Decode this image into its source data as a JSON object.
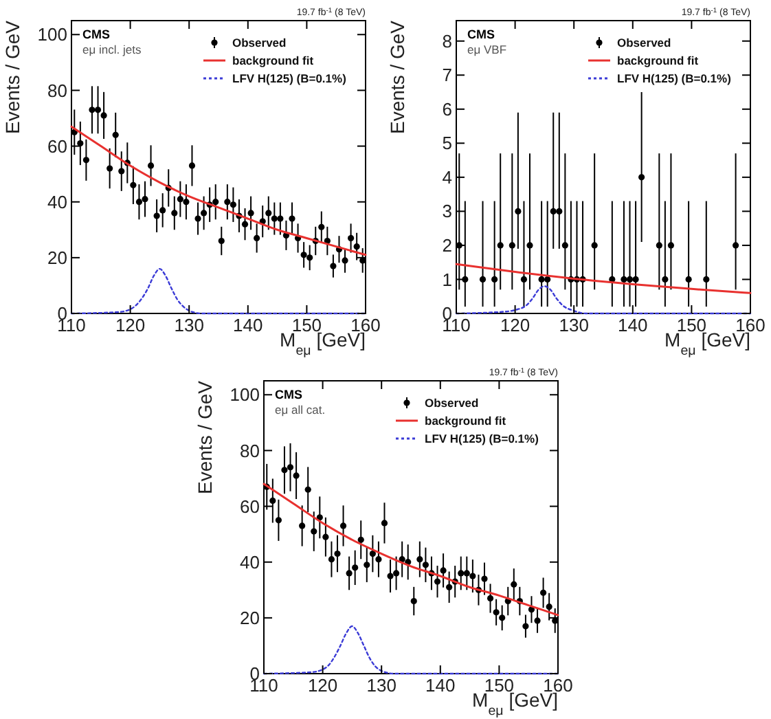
{
  "chart_data": [
    {
      "type": "scatter",
      "title": "19.7 fb$^{-1}$ (8 TeV)",
      "xlabel": "M$_{eμ}$ [GeV]",
      "ylabel": "Events / GeV",
      "annotations": [
        "CMS",
        "eμ incl. jets"
      ],
      "xlim": [
        110,
        160
      ],
      "xticks": [
        110,
        120,
        130,
        140,
        150,
        160
      ],
      "ylim": [
        0,
        105
      ],
      "yticks": [
        0,
        20,
        40,
        60,
        80,
        100
      ],
      "legend": "top right",
      "grid": false,
      "series": [
        {
          "name": "Observed",
          "color": "#000000",
          "marker": "circle",
          "x": [
            110.5,
            111.5,
            112.5,
            113.5,
            114.5,
            115.5,
            116.5,
            117.5,
            118.5,
            119.5,
            120.5,
            121.5,
            122.5,
            123.5,
            124.5,
            125.5,
            126.5,
            127.5,
            128.5,
            129.5,
            130.5,
            131.5,
            132.5,
            133.5,
            134.5,
            135.5,
            136.5,
            137.5,
            138.5,
            139.5,
            140.5,
            141.5,
            142.5,
            143.5,
            144.5,
            145.5,
            146.5,
            147.5,
            148.5,
            149.5,
            150.5,
            151.5,
            152.5,
            153.5,
            154.5,
            155.5,
            156.5,
            157.5,
            158.5,
            159.5
          ],
          "values": [
            65,
            61,
            55,
            73,
            73,
            71,
            52,
            64,
            51,
            54,
            46,
            40,
            41,
            53,
            35,
            37,
            45,
            36,
            41,
            40,
            53,
            34,
            36,
            39,
            40,
            26,
            40,
            39,
            35,
            32,
            36,
            27,
            33,
            36,
            34,
            34,
            28,
            34,
            27,
            21,
            20,
            26,
            31,
            26,
            17,
            23,
            19,
            27,
            24,
            19
          ],
          "errors": [
            8.1,
            7.8,
            7.4,
            8.5,
            8.5,
            8.4,
            7.2,
            8.0,
            7.1,
            7.3,
            6.8,
            6.3,
            6.4,
            7.3,
            5.9,
            6.1,
            6.7,
            6.0,
            6.4,
            6.3,
            7.3,
            5.8,
            6.0,
            6.2,
            6.3,
            5.1,
            6.3,
            6.2,
            5.9,
            5.7,
            6.0,
            5.2,
            5.7,
            6.0,
            5.8,
            5.8,
            5.3,
            5.8,
            5.2,
            4.6,
            4.5,
            5.1,
            5.6,
            5.1,
            4.1,
            4.8,
            4.4,
            5.2,
            4.9,
            4.4
          ]
        },
        {
          "name": "background fit",
          "type": "line",
          "color": "#e8312f",
          "line_style": "solid",
          "x": [
            110,
            115,
            120,
            125,
            130,
            135,
            140,
            145,
            150,
            155,
            160
          ],
          "values": [
            67,
            60,
            53,
            47,
            42,
            38,
            34,
            30,
            27,
            24,
            21
          ]
        },
        {
          "name": "LFV H(125) (B=0.1%)",
          "type": "line",
          "color": "#3b3bd6",
          "line_style": "dotted",
          "x": [
            110,
            118,
            120,
            121,
            122,
            123,
            124,
            125,
            126,
            127,
            128,
            129,
            130,
            131,
            132,
            160
          ],
          "values": [
            0,
            0.5,
            1.5,
            3,
            5.5,
            9,
            13.5,
            16,
            13.5,
            9,
            5,
            2.5,
            1,
            0.3,
            0,
            0
          ]
        }
      ]
    },
    {
      "type": "scatter",
      "title": "19.7 fb$^{-1}$ (8 TeV)",
      "xlabel": "M$_{eμ}$ [GeV]",
      "ylabel": "Events / GeV",
      "annotations": [
        "CMS",
        "eμ VBF"
      ],
      "xlim": [
        110,
        160
      ],
      "xticks": [
        110,
        120,
        130,
        140,
        150,
        160
      ],
      "ylim": [
        0,
        8.6
      ],
      "yticks": [
        0,
        1,
        2,
        3,
        4,
        5,
        6,
        7,
        8
      ],
      "legend": "top right",
      "grid": false,
      "series": [
        {
          "name": "Observed",
          "color": "#000000",
          "marker": "circle",
          "x": [
            110.5,
            111.5,
            114.5,
            116.5,
            117.5,
            119.5,
            120.5,
            121.5,
            122.5,
            124.5,
            125.5,
            126.5,
            127.5,
            128.5,
            129.5,
            130.5,
            131.5,
            133.5,
            136.5,
            138.5,
            139.5,
            140.5,
            141.5,
            144.5,
            145.5,
            146.5,
            149.5,
            152.5,
            157.5
          ],
          "values": [
            2,
            1,
            1,
            1,
            2,
            2,
            3,
            1,
            2,
            1,
            1,
            3,
            3,
            2,
            1,
            1,
            1,
            2,
            1,
            1,
            1,
            1,
            4,
            2,
            1,
            2,
            1,
            1,
            2
          ],
          "errors": [
            [
              0.7,
              4.7
            ],
            [
              0.2,
              3.3
            ],
            [
              0.2,
              3.3
            ],
            [
              0.2,
              3.3
            ],
            [
              0.7,
              4.7
            ],
            [
              0.7,
              4.7
            ],
            [
              1.9,
              5.9
            ],
            [
              0.2,
              3.3
            ],
            [
              0.7,
              4.7
            ],
            [
              0.2,
              3.3
            ],
            [
              0.2,
              3.3
            ],
            [
              1.9,
              5.9
            ],
            [
              1.9,
              5.9
            ],
            [
              0.7,
              4.7
            ],
            [
              0.2,
              3.3
            ],
            [
              0.2,
              3.3
            ],
            [
              0.2,
              3.3
            ],
            [
              0.7,
              4.7
            ],
            [
              0.2,
              3.3
            ],
            [
              0.2,
              3.3
            ],
            [
              0.2,
              3.3
            ],
            [
              0.2,
              3.3
            ],
            [
              2.1,
              6.5
            ],
            [
              0.7,
              4.7
            ],
            [
              0.2,
              3.3
            ],
            [
              0.7,
              4.7
            ],
            [
              0.2,
              3.3
            ],
            [
              0.2,
              3.3
            ],
            [
              0.7,
              4.7
            ]
          ]
        },
        {
          "name": "background fit",
          "type": "line",
          "color": "#e8312f",
          "line_style": "solid",
          "x": [
            110,
            120,
            130,
            140,
            150,
            160
          ],
          "values": [
            1.45,
            1.22,
            1.02,
            0.86,
            0.72,
            0.6
          ]
        },
        {
          "name": "LFV H(125) (B=0.1%)",
          "type": "line",
          "color": "#3b3bd6",
          "line_style": "dotted",
          "x": [
            110,
            118,
            120,
            122,
            123,
            124,
            125,
            126,
            127,
            128,
            130,
            132,
            160
          ],
          "values": [
            0,
            0.05,
            0.1,
            0.25,
            0.45,
            0.7,
            0.8,
            0.7,
            0.45,
            0.25,
            0.08,
            0,
            0
          ]
        }
      ]
    },
    {
      "type": "scatter",
      "title": "19.7 fb$^{-1}$ (8 TeV)",
      "xlabel": "M$_{eμ}$ [GeV]",
      "ylabel": "Events / GeV",
      "annotations": [
        "CMS",
        "eμ all cat."
      ],
      "xlim": [
        110,
        160
      ],
      "xticks": [
        110,
        120,
        130,
        140,
        150,
        160
      ],
      "ylim": [
        0,
        105
      ],
      "yticks": [
        0,
        20,
        40,
        60,
        80,
        100
      ],
      "legend": "top right",
      "grid": false,
      "series": [
        {
          "name": "Observed",
          "color": "#000000",
          "marker": "circle",
          "x": [
            110.5,
            111.5,
            112.5,
            113.5,
            114.5,
            115.5,
            116.5,
            117.5,
            118.5,
            119.5,
            120.5,
            121.5,
            122.5,
            123.5,
            124.5,
            125.5,
            126.5,
            127.5,
            128.5,
            129.5,
            130.5,
            131.5,
            132.5,
            133.5,
            134.5,
            135.5,
            136.5,
            137.5,
            138.5,
            139.5,
            140.5,
            141.5,
            142.5,
            143.5,
            144.5,
            145.5,
            146.5,
            147.5,
            148.5,
            149.5,
            150.5,
            151.5,
            152.5,
            153.5,
            154.5,
            155.5,
            156.5,
            157.5,
            158.5,
            159.5
          ],
          "values": [
            67,
            62,
            55,
            73,
            74,
            71,
            53,
            66,
            51,
            56,
            49,
            41,
            43,
            53,
            36,
            38,
            48,
            39,
            43,
            41,
            54,
            35,
            36,
            41,
            40,
            26,
            41,
            39,
            36,
            33,
            37,
            31,
            33,
            36,
            36,
            35,
            30,
            34,
            27,
            22,
            20,
            26,
            32,
            26,
            17,
            23,
            19,
            29,
            24,
            19
          ],
          "errors": [
            8.2,
            7.9,
            7.4,
            8.5,
            8.6,
            8.4,
            7.3,
            8.1,
            7.1,
            7.5,
            7.0,
            6.4,
            6.6,
            7.3,
            6.0,
            6.2,
            6.9,
            6.2,
            6.6,
            6.4,
            7.3,
            5.9,
            6.0,
            6.4,
            6.3,
            5.1,
            6.4,
            6.2,
            6.0,
            5.7,
            6.1,
            5.6,
            5.7,
            6.0,
            6.0,
            5.9,
            5.5,
            5.8,
            5.2,
            4.7,
            4.5,
            5.1,
            5.7,
            5.1,
            4.1,
            4.8,
            4.4,
            5.4,
            4.9,
            4.4
          ]
        },
        {
          "name": "background fit",
          "type": "line",
          "color": "#e8312f",
          "line_style": "solid",
          "x": [
            110,
            115,
            120,
            125,
            130,
            135,
            140,
            145,
            150,
            155,
            160
          ],
          "values": [
            68,
            61,
            54,
            48,
            43,
            38.5,
            35,
            31,
            28,
            24.5,
            21
          ]
        },
        {
          "name": "LFV H(125) (B=0.1%)",
          "type": "line",
          "color": "#3b3bd6",
          "line_style": "dotted",
          "x": [
            110,
            118,
            120,
            121,
            122,
            123,
            124,
            125,
            126,
            127,
            128,
            129,
            130,
            131,
            132,
            160
          ],
          "values": [
            0,
            0.5,
            1.5,
            3,
            6,
            10,
            14.5,
            17,
            14.5,
            10,
            5.5,
            2.5,
            1,
            0.3,
            0,
            0
          ]
        }
      ]
    }
  ]
}
